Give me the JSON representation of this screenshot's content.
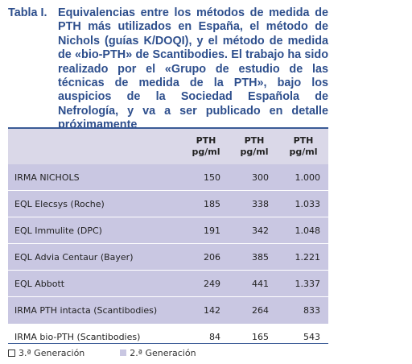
{
  "caption": {
    "label": "Tabla I.",
    "text": "Equivalencias entre los métodos de medida de PTH más utilizados en España, el método de Nichols (guías K/DOQI), y el método de medida de «bio-PTH» de Scantibodies. El trabajo ha sido realizado por el «Grupo de estudio de las técnicas de medida de la PTH», bajo los auspicios de la Sociedad Española de Nefrología, y va a ser publicado en detalle próximamente"
  },
  "table": {
    "headers": [
      "",
      "PTH\npg/ml",
      "PTH\npg/ml",
      "PTH\npg/ml"
    ],
    "rows": [
      {
        "method": "IRMA NICHOLS",
        "values": [
          "150",
          "300",
          "1.000"
        ],
        "group": "2"
      },
      {
        "method": "EQL Elecsys (Roche)",
        "values": [
          "185",
          "338",
          "1.033"
        ],
        "group": "2"
      },
      {
        "method": "EQL Immulite (DPC)",
        "values": [
          "191",
          "342",
          "1.048"
        ],
        "group": "2"
      },
      {
        "method": "EQL Advia Centaur (Bayer)",
        "values": [
          "206",
          "385",
          "1.221"
        ],
        "group": "2"
      },
      {
        "method": "EQL Abbott",
        "values": [
          "249",
          "441",
          "1.337"
        ],
        "group": "2"
      },
      {
        "method": "IRMA PTH intacta (Scantibodies)",
        "values": [
          "142",
          "264",
          "833"
        ],
        "group": "2"
      },
      {
        "method": "IRMA bio-PTH (Scantibodies)",
        "values": [
          "84",
          "165",
          "543"
        ],
        "group": "3"
      }
    ]
  },
  "legend": {
    "gen3": "3.ª Generación",
    "gen2": "2.ª Generación"
  },
  "colors": {
    "title": "#2e4f8d",
    "gen2_fill": "#c9c7e2",
    "header_fill": "#dad8e8",
    "rule": "#3a5b96"
  }
}
